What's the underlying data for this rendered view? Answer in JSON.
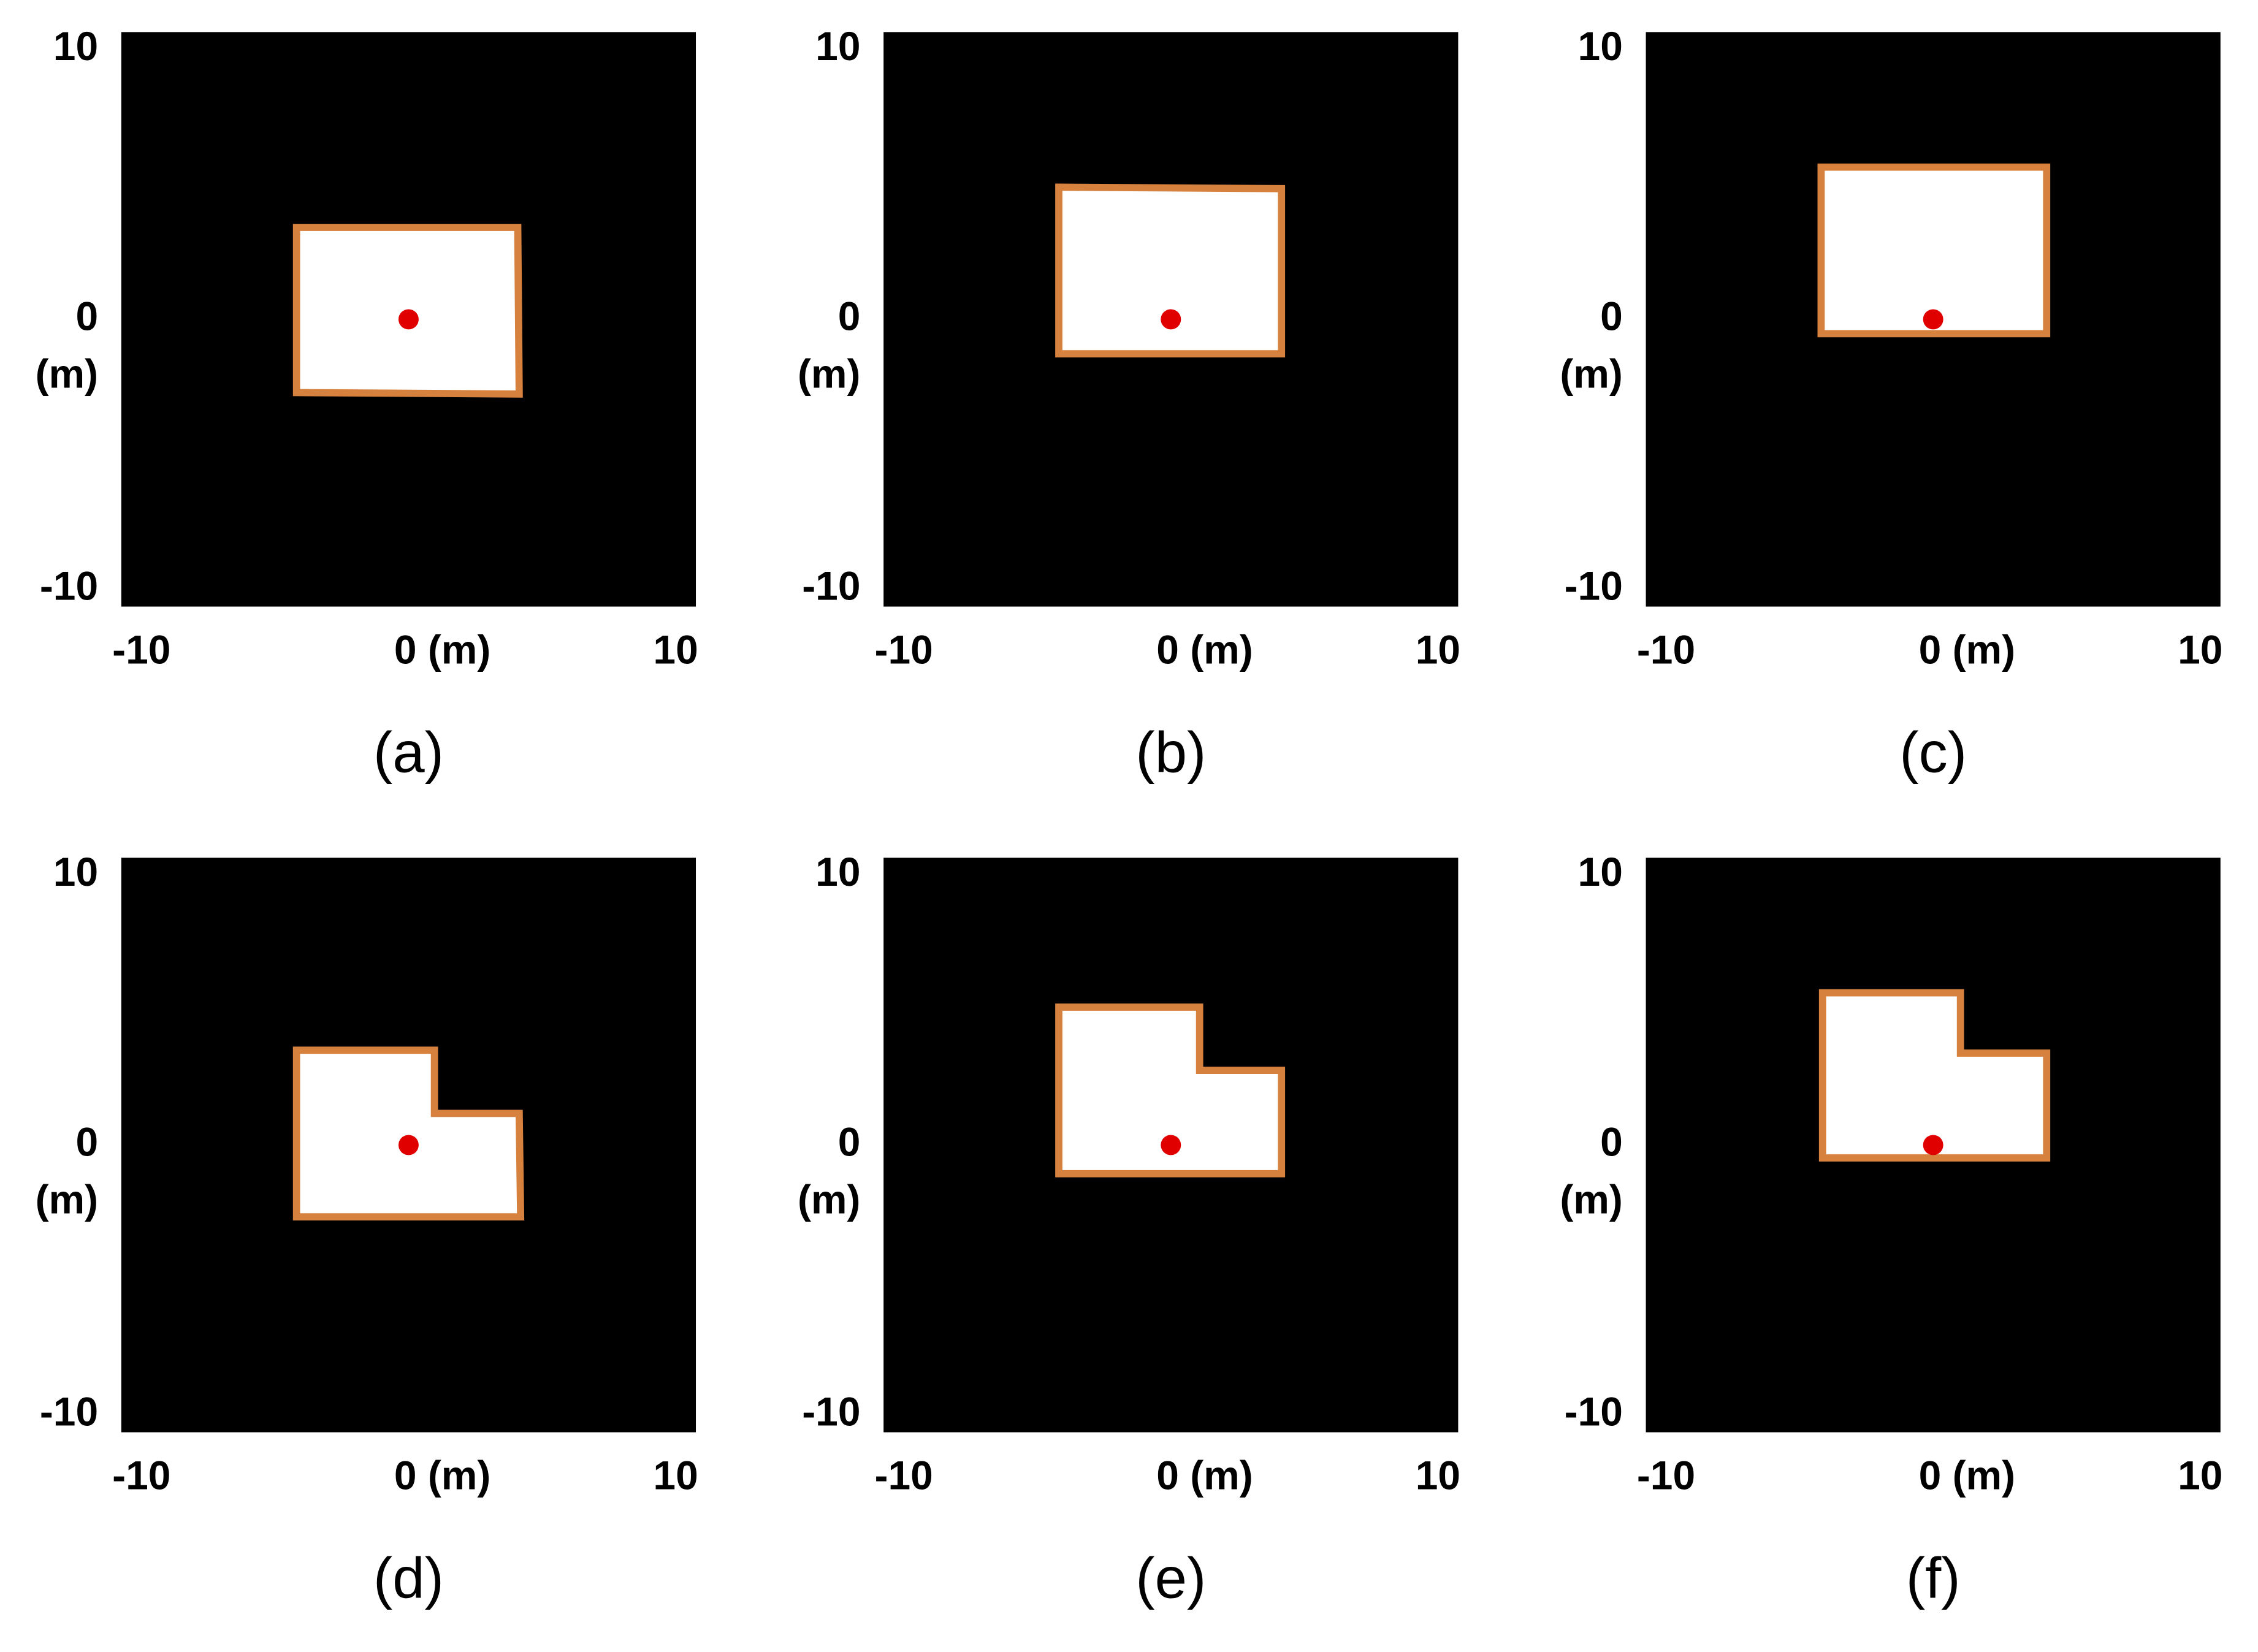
{
  "chart_data": [
    {
      "type": "map",
      "label": "(a)",
      "xlim": [
        -10,
        10
      ],
      "ylim": [
        -10,
        10
      ],
      "xticks": [
        -10,
        {
          "value": 0,
          "label": "0 (m)"
        },
        10
      ],
      "yticks": [
        10,
        0,
        -10
      ],
      "ylabel": "(m)",
      "series": [
        {
          "type": "polygon",
          "color": "#d7813f",
          "x": [
            -3.9,
            3.8,
            3.85,
            -3.9
          ],
          "values": [
            3.2,
            3.2,
            -2.6,
            -2.55
          ]
        },
        {
          "type": "scatter",
          "color": "#e00000",
          "x": [
            0
          ],
          "values": [
            0
          ]
        }
      ]
    },
    {
      "type": "map",
      "label": "(b)",
      "xlim": [
        -10,
        10
      ],
      "ylim": [
        -10,
        10
      ],
      "xticks": [
        -10,
        {
          "value": 0,
          "label": "0 (m)"
        },
        10
      ],
      "yticks": [
        10,
        0,
        -10
      ],
      "ylabel": "(m)",
      "series": [
        {
          "type": "polygon",
          "color": "#d7813f",
          "x": [
            -3.9,
            3.85,
            3.85,
            -3.9
          ],
          "values": [
            4.6,
            4.55,
            -1.2,
            -1.2
          ]
        },
        {
          "type": "scatter",
          "color": "#e00000",
          "x": [
            0
          ],
          "values": [
            0
          ]
        }
      ]
    },
    {
      "type": "map",
      "label": "(c)",
      "xlim": [
        -10,
        10
      ],
      "ylim": [
        -10,
        10
      ],
      "xticks": [
        -10,
        {
          "value": 0,
          "label": "0 (m)"
        },
        10
      ],
      "yticks": [
        10,
        0,
        -10
      ],
      "ylabel": "(m)",
      "series": [
        {
          "type": "polygon",
          "color": "#d7813f",
          "x": [
            -3.9,
            3.95,
            3.95,
            -3.9
          ],
          "values": [
            5.3,
            5.3,
            -0.5,
            -0.5
          ]
        },
        {
          "type": "scatter",
          "color": "#e00000",
          "x": [
            0
          ],
          "values": [
            0
          ]
        }
      ]
    },
    {
      "type": "map",
      "label": "(d)",
      "xlim": [
        -10,
        10
      ],
      "ylim": [
        -10,
        10
      ],
      "xticks": [
        -10,
        {
          "value": 0,
          "label": "0 (m)"
        },
        10
      ],
      "yticks": [
        10,
        0,
        -10
      ],
      "ylabel": "(m)",
      "series": [
        {
          "type": "polygon",
          "color": "#d7813f",
          "x": [
            -3.9,
            0.9,
            0.9,
            3.85,
            3.9,
            -3.9
          ],
          "values": [
            3.3,
            3.3,
            1.1,
            1.1,
            -2.5,
            -2.5
          ]
        },
        {
          "type": "scatter",
          "color": "#e00000",
          "x": [
            0
          ],
          "values": [
            0
          ]
        }
      ]
    },
    {
      "type": "map",
      "label": "(e)",
      "xlim": [
        -10,
        10
      ],
      "ylim": [
        -10,
        10
      ],
      "xticks": [
        -10,
        {
          "value": 0,
          "label": "0 (m)"
        },
        10
      ],
      "yticks": [
        10,
        0,
        -10
      ],
      "ylabel": "(m)",
      "series": [
        {
          "type": "polygon",
          "color": "#d7813f",
          "x": [
            -3.9,
            1.0,
            1.0,
            3.85,
            3.85,
            -3.9
          ],
          "values": [
            4.8,
            4.8,
            2.6,
            2.6,
            -1.0,
            -1.0
          ]
        },
        {
          "type": "scatter",
          "color": "#e00000",
          "x": [
            0
          ],
          "values": [
            0
          ]
        }
      ]
    },
    {
      "type": "map",
      "label": "(f)",
      "xlim": [
        -10,
        10
      ],
      "ylim": [
        -10,
        10
      ],
      "xticks": [
        -10,
        {
          "value": 0,
          "label": "0 (m)"
        },
        10
      ],
      "yticks": [
        10,
        0,
        -10
      ],
      "ylabel": "(m)",
      "series": [
        {
          "type": "polygon",
          "color": "#d7813f",
          "x": [
            -3.85,
            0.95,
            0.95,
            3.95,
            3.95,
            -3.85
          ],
          "values": [
            5.3,
            5.3,
            3.2,
            3.2,
            -0.45,
            -0.45
          ]
        },
        {
          "type": "scatter",
          "color": "#e00000",
          "x": [
            0
          ],
          "values": [
            0
          ]
        }
      ]
    }
  ]
}
